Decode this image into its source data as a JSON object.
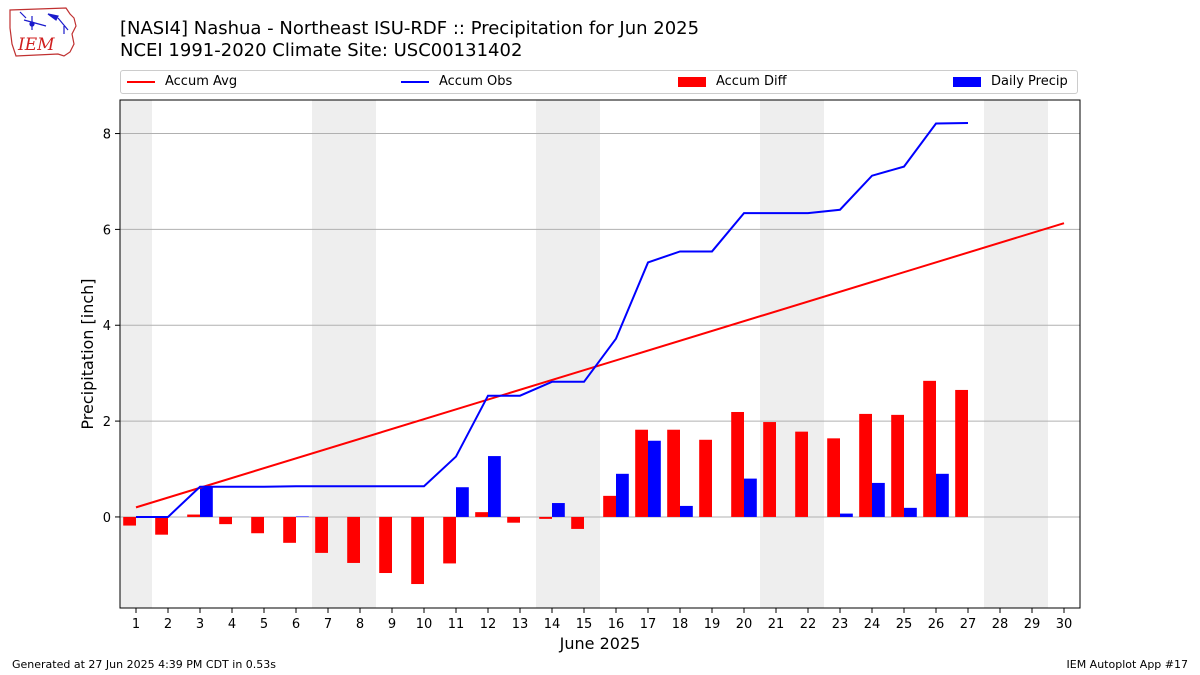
{
  "header": {
    "title_line1": "[NASI4] Nashua - Northeast ISU-RDF :: Precipitation for Jun 2025",
    "title_line2": "NCEI 1991-2020 Climate Site: USC00131402"
  },
  "logo": {
    "text": "IEM"
  },
  "footer": {
    "left": "Generated at 27 Jun 2025 4:39 PM CDT in 0.53s",
    "right": "IEM Autoplot App #17"
  },
  "colors": {
    "accum_avg": "#ff0000",
    "accum_obs": "#0000ff",
    "accum_diff": "#ff0000",
    "daily_precip": "#0000ff",
    "weekend_shade": "#eeeeee",
    "grid": "#b0b0b0"
  },
  "chart_data": {
    "type": "bar",
    "xlabel": "June 2025",
    "ylabel": "Precipitation [inch]",
    "xlim": [
      0.5,
      30.5
    ],
    "ylim": [
      -1.9,
      8.7
    ],
    "yticks": [
      0,
      2,
      4,
      6,
      8
    ],
    "grid": true,
    "legend_position": "top",
    "days": [
      1,
      2,
      3,
      4,
      5,
      6,
      7,
      8,
      9,
      10,
      11,
      12,
      13,
      14,
      15,
      16,
      17,
      18,
      19,
      20,
      21,
      22,
      23,
      24,
      25,
      26,
      27,
      28,
      29,
      30
    ],
    "shaded_days": [
      1,
      7,
      8,
      14,
      15,
      21,
      22,
      28,
      29
    ],
    "series": [
      {
        "name": "Accum Avg",
        "kind": "line",
        "x": [
          1,
          30
        ],
        "values": [
          0.2,
          6.13
        ]
      },
      {
        "name": "Accum Obs",
        "kind": "line",
        "x": [
          1,
          2,
          3,
          4,
          5,
          6,
          7,
          8,
          9,
          10,
          11,
          12,
          13,
          14,
          15,
          16,
          17,
          18,
          19,
          20,
          21,
          22,
          23,
          24,
          25,
          26,
          27
        ],
        "values": [
          0.0,
          0.0,
          0.63,
          0.63,
          0.63,
          0.64,
          0.64,
          0.64,
          0.64,
          0.64,
          1.26,
          2.53,
          2.53,
          2.82,
          2.82,
          3.72,
          5.31,
          5.54,
          5.54,
          6.34,
          6.34,
          6.34,
          6.41,
          7.12,
          7.31,
          8.21,
          8.22
        ]
      },
      {
        "name": "Accum Diff",
        "kind": "bar",
        "x": [
          1,
          2,
          3,
          4,
          5,
          6,
          7,
          8,
          9,
          10,
          11,
          12,
          13,
          14,
          15,
          16,
          17,
          18,
          19,
          20,
          21,
          22,
          23,
          24,
          25,
          26,
          27
        ],
        "values": [
          -0.18,
          -0.37,
          0.05,
          -0.15,
          -0.34,
          -0.54,
          -0.75,
          -0.96,
          -1.17,
          -1.4,
          -0.97,
          0.1,
          -0.12,
          -0.04,
          -0.25,
          0.44,
          1.82,
          1.82,
          1.61,
          2.19,
          1.98,
          1.78,
          1.64,
          2.15,
          2.13,
          2.84,
          2.65
        ]
      },
      {
        "name": "Daily Precip",
        "kind": "bar",
        "x": [
          1,
          2,
          3,
          4,
          5,
          6,
          7,
          8,
          9,
          10,
          11,
          12,
          13,
          14,
          15,
          16,
          17,
          18,
          19,
          20,
          21,
          22,
          23,
          24,
          25,
          26,
          27
        ],
        "values": [
          0,
          0,
          0.63,
          0,
          0,
          0.01,
          0,
          0,
          0,
          0,
          0.62,
          1.27,
          0,
          0.29,
          0,
          0.9,
          1.59,
          0.23,
          0,
          0.8,
          0,
          0,
          0.07,
          0.71,
          0.19,
          0.9,
          0
        ]
      }
    ]
  }
}
